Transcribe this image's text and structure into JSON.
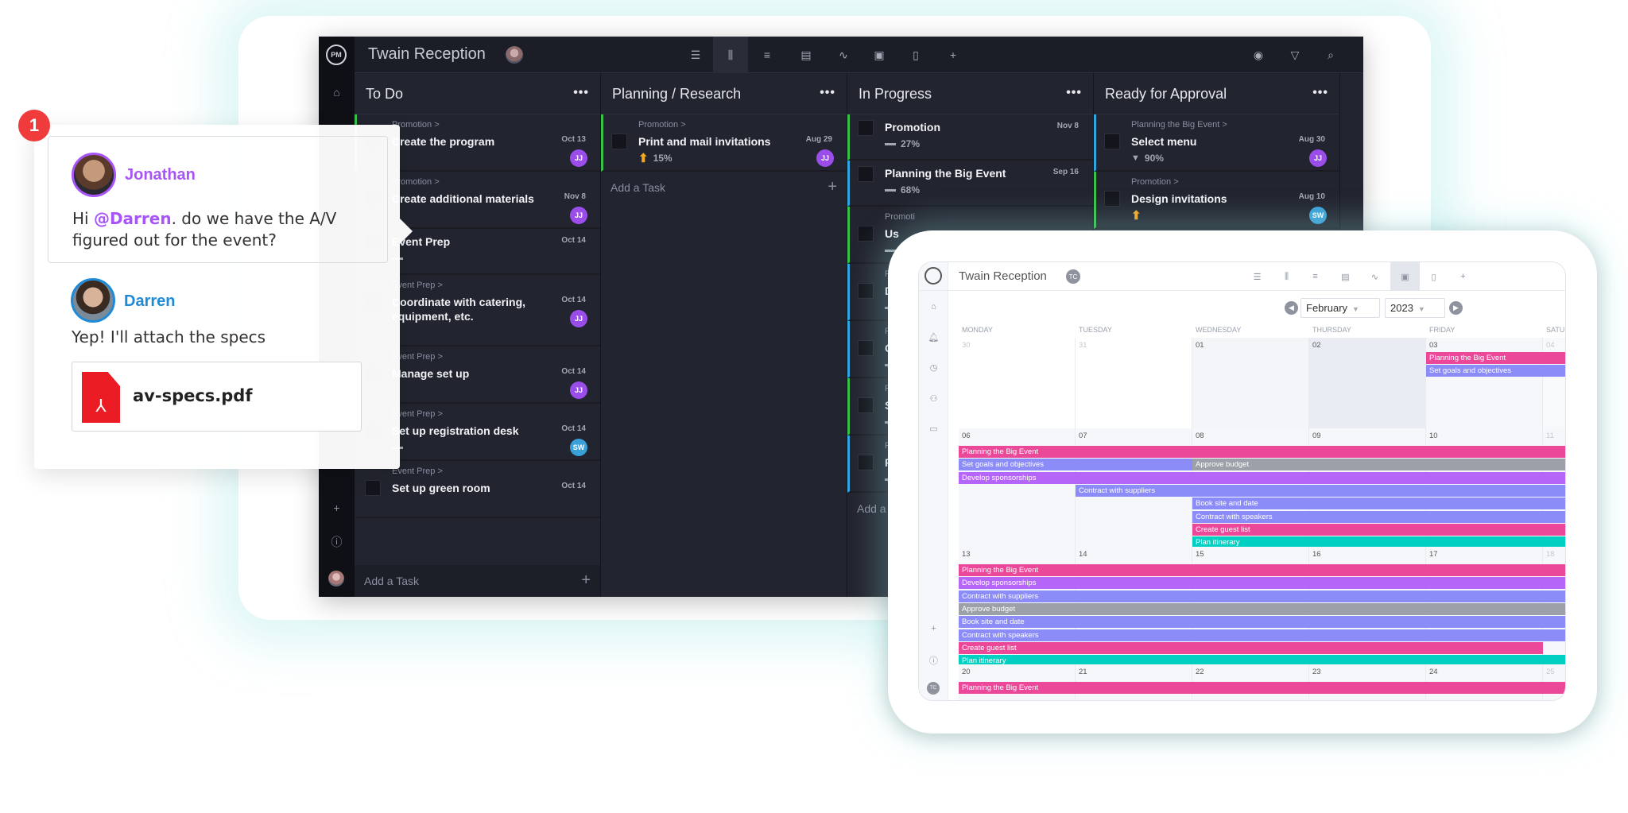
{
  "board": {
    "project_title": "Twain Reception",
    "toolbar_icons": [
      "list-icon",
      "board-icon",
      "gantt-icon",
      "sheet-icon",
      "dashboard-icon",
      "calendar-icon",
      "file-icon",
      "plus-icon"
    ],
    "active_view": "board-icon",
    "right_icons": [
      "eye-icon",
      "filter-icon",
      "search-icon"
    ],
    "add_task_label": "Add a Task",
    "columns": [
      {
        "title": "To Do",
        "cards": [
          {
            "parent": "Promotion >",
            "title": "Create the program",
            "date": "Oct 13",
            "avatar": "JJ",
            "progress": "",
            "accent": "#3ac14a"
          },
          {
            "parent": "Promotion >",
            "title": "Create additional materials",
            "date": "Nov 8",
            "avatar": "JJ",
            "progress": "",
            "accent": ""
          },
          {
            "parent": "",
            "title": "Event Prep",
            "date": "Oct 14",
            "avatar": "",
            "progress": "dash",
            "accent": ""
          },
          {
            "parent": "Event Prep >",
            "title": "Coordinate with catering, equipment, etc.",
            "date": "Oct 14",
            "avatar": "JJ",
            "progress": "",
            "accent": ""
          },
          {
            "parent": "Event Prep >",
            "title": "Manage set up",
            "date": "Oct 14",
            "avatar": "JJ",
            "progress": "",
            "accent": ""
          },
          {
            "parent": "Event Prep >",
            "title": "Set up registration desk",
            "date": "Oct 14",
            "avatar": "SW",
            "progress": "dash",
            "accent": ""
          },
          {
            "parent": "Event Prep >",
            "title": "Set up green room",
            "date": "Oct 14",
            "avatar": "",
            "progress": "",
            "accent": ""
          }
        ]
      },
      {
        "title": "Planning / Research",
        "cards": [
          {
            "parent": "Promotion >",
            "title": "Print and mail invitations",
            "date": "Aug 29",
            "avatar": "JJ",
            "progress": "up",
            "percent": "15%",
            "accent": "#3ac14a"
          }
        ]
      },
      {
        "title": "In Progress",
        "cards": [
          {
            "parent": "",
            "title": "Promotion",
            "date": "Nov 8",
            "avatar": "",
            "progress": "dash",
            "percent": "27%",
            "accent": "#3ac14a"
          },
          {
            "parent": "",
            "title": "Planning the Big Event",
            "date": "Sep 16",
            "avatar": "",
            "progress": "dash",
            "percent": "68%",
            "accent": "#2fa8e0"
          },
          {
            "parent": "Promoti",
            "title": "Us",
            "date": "",
            "avatar": "",
            "progress": "dash",
            "accent": "#3ac14a"
          },
          {
            "parent": "P",
            "title": "D",
            "date": "",
            "avatar": "",
            "progress": "dash",
            "accent": "#2fa8e0"
          },
          {
            "parent": "P",
            "title": "C",
            "date": "",
            "avatar": "",
            "progress": "dash",
            "accent": "#2fa8e0"
          },
          {
            "parent": "P",
            "title": "S",
            "date": "",
            "avatar": "",
            "progress": "dash",
            "accent": "#3ac14a"
          },
          {
            "parent": "P",
            "title": "P",
            "date": "",
            "avatar": "",
            "progress": "dash",
            "accent": "#2fa8e0"
          }
        ]
      },
      {
        "title": "Ready for Approval",
        "cards": [
          {
            "parent": "Planning the Big Event >",
            "title": "Select menu",
            "date": "Aug 30",
            "avatar": "JJ",
            "progress": "down",
            "percent": "90%",
            "accent": "#2fa8e0"
          },
          {
            "parent": "Promotion >",
            "title": "Design invitations",
            "date": "Aug 10",
            "avatar": "SW",
            "progress": "up",
            "percent": "",
            "accent": "#3ac14a"
          }
        ]
      }
    ],
    "avatar_colors": {
      "JJ": "#9b4dea",
      "SW": "#3aa0d8"
    }
  },
  "chat": {
    "badge": "1",
    "messages": [
      {
        "author": "Jonathan",
        "author_color": "#a855f7",
        "mention": "@Darren",
        "text_before": "Hi ",
        "text_after": ". do we have the A/V figured out for the event?"
      },
      {
        "author": "Darren",
        "author_color": "#1f8ad6",
        "text": "Yep! I'll attach the specs"
      }
    ],
    "attachment": {
      "name": "av-specs.pdf",
      "icon": "pdf-icon"
    }
  },
  "calendar": {
    "project_title": "Twain Reception",
    "owner_initials": "TC",
    "month": "February",
    "year": "2023",
    "active_view": "calendar-icon",
    "day_headers": [
      "MONDAY",
      "TUESDAY",
      "WEDNESDAY",
      "THURSDAY",
      "FRIDAY",
      "SATURDAY"
    ],
    "colors": {
      "pink": "#ec4899",
      "periwinkle": "#8b8cf8",
      "violet": "#b565f7",
      "gray": "#9ca0a8",
      "teal": "#00cfc1"
    },
    "weeks": [
      {
        "dates": [
          "30",
          "31",
          "01",
          "02",
          "03",
          "04"
        ],
        "events": [
          {
            "label": "Planning the Big Event",
            "color": "pink",
            "start": 4,
            "end": 5
          },
          {
            "label": "Set goals and objectives",
            "color": "periwinkle",
            "start": 4,
            "end": 5
          }
        ]
      },
      {
        "dates": [
          "06",
          "07",
          "08",
          "09",
          "10",
          "11"
        ],
        "events": [
          {
            "label": "Planning the Big Event",
            "color": "pink",
            "start": 0,
            "end": 5
          },
          {
            "label": "Set goals and objectives",
            "color": "periwinkle",
            "start": 0,
            "end": 1
          },
          {
            "label": "Approve budget",
            "color": "gray",
            "start": 2,
            "end": 5,
            "row": 1
          },
          {
            "label": "Develop sponsorships",
            "color": "violet",
            "start": 0,
            "end": 5
          },
          {
            "label": "Contract with suppliers",
            "color": "periwinkle",
            "start": 1,
            "end": 5
          },
          {
            "label": "Book site and date",
            "color": "periwinkle",
            "start": 2,
            "end": 5
          },
          {
            "label": "Contract with speakers",
            "color": "periwinkle",
            "start": 2,
            "end": 5
          },
          {
            "label": "Create guest list",
            "color": "pink",
            "start": 2,
            "end": 5
          },
          {
            "label": "Plan itinerary",
            "color": "teal",
            "start": 2,
            "end": 5
          }
        ]
      },
      {
        "dates": [
          "13",
          "14",
          "15",
          "16",
          "17",
          "18"
        ],
        "events": [
          {
            "label": "Planning the Big Event",
            "color": "pink",
            "start": 0,
            "end": 5
          },
          {
            "label": "Develop sponsorships",
            "color": "violet",
            "start": 0,
            "end": 5
          },
          {
            "label": "Contract with suppliers",
            "color": "periwinkle",
            "start": 0,
            "end": 5
          },
          {
            "label": "Approve budget",
            "color": "gray",
            "start": 0,
            "end": 5
          },
          {
            "label": "Book site and date",
            "color": "periwinkle",
            "start": 0,
            "end": 5
          },
          {
            "label": "Contract with speakers",
            "color": "periwinkle",
            "start": 0,
            "end": 5
          },
          {
            "label": "Create guest list",
            "color": "pink",
            "start": 0,
            "end": 4
          },
          {
            "label": "Plan itinerary",
            "color": "teal",
            "start": 0,
            "end": 5
          }
        ]
      },
      {
        "dates": [
          "20",
          "21",
          "22",
          "23",
          "24",
          "25"
        ],
        "events": [
          {
            "label": "Planning the Big Event",
            "color": "pink",
            "start": 0,
            "end": 5
          }
        ]
      }
    ]
  }
}
